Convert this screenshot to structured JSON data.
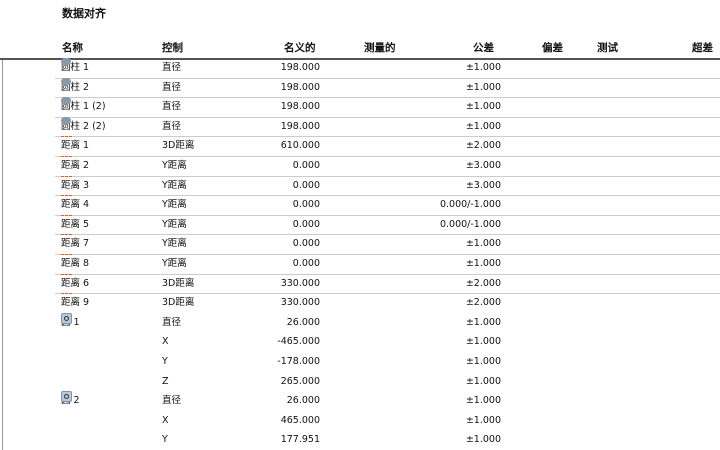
{
  "title": "数据对齐",
  "headers": [
    "名称",
    "控制",
    "名义的",
    "测量的",
    "公差",
    "偏差",
    "测试",
    "超差"
  ],
  "rows": [
    {
      "icon": "cylinder",
      "name": "圆柱 1",
      "control": "直径",
      "nominal": "198.000",
      "tol": "±1.000",
      "div": true
    },
    {
      "icon": "cylinder",
      "name": "圆柱 2",
      "control": "直径",
      "nominal": "198.000",
      "tol": "±1.000",
      "div": true
    },
    {
      "icon": "cylinder",
      "name": "圆柱 1 (2)",
      "control": "直径",
      "nominal": "198.000",
      "tol": "±1.000",
      "div": true
    },
    {
      "icon": "cylinder",
      "name": "圆柱 2 (2)",
      "control": "直径",
      "nominal": "198.000",
      "tol": "±1.000",
      "div": true
    },
    {
      "icon": "distance",
      "name": "距离 1",
      "control": "3D距离",
      "nominal": "610.000",
      "tol": "±2.000",
      "div": true
    },
    {
      "icon": "distance",
      "name": "距离 2",
      "control": "Y距离",
      "nominal": "0.000",
      "tol": "±3.000",
      "div": true
    },
    {
      "icon": "distance",
      "name": "距离 3",
      "control": "Y距离",
      "nominal": "0.000",
      "tol": "±3.000",
      "div": true
    },
    {
      "icon": "distance",
      "name": "距离 4",
      "control": "Y距离",
      "nominal": "0.000",
      "tol": "0.000/-1.000",
      "div": true
    },
    {
      "icon": "distance",
      "name": "距离 5",
      "control": "Y距离",
      "nominal": "0.000",
      "tol": "0.000/-1.000",
      "div": true
    },
    {
      "icon": "distance",
      "name": "距离 7",
      "control": "Y距离",
      "nominal": "0.000",
      "tol": "±1.000",
      "div": true
    },
    {
      "icon": "distance",
      "name": "距离 8",
      "control": "Y距离",
      "nominal": "0.000",
      "tol": "±1.000",
      "div": true
    },
    {
      "icon": "distance",
      "name": "距离 6",
      "control": "3D距离",
      "nominal": "330.000",
      "tol": "±2.000",
      "div": true
    },
    {
      "icon": "distance",
      "name": "距离 9",
      "control": "3D距离",
      "nominal": "330.000",
      "tol": "±2.000",
      "div": false
    },
    {
      "icon": "circle",
      "name": "圆 1",
      "control": "直径",
      "nominal": "26.000",
      "tol": "±1.000",
      "div": false
    },
    {
      "icon": "",
      "name": "",
      "control": "X",
      "nominal": "-465.000",
      "tol": "±1.000",
      "div": false
    },
    {
      "icon": "",
      "name": "",
      "control": "Y",
      "nominal": "-178.000",
      "tol": "±1.000",
      "div": false
    },
    {
      "icon": "",
      "name": "",
      "control": "Z",
      "nominal": "265.000",
      "tol": "±1.000",
      "div": false
    },
    {
      "icon": "circle",
      "name": "圆 2",
      "control": "直径",
      "nominal": "26.000",
      "tol": "±1.000",
      "div": false
    },
    {
      "icon": "",
      "name": "",
      "control": "X",
      "nominal": "465.000",
      "tol": "±1.000",
      "div": false
    },
    {
      "icon": "",
      "name": "",
      "control": "Y",
      "nominal": "177.951",
      "tol": "±1.000",
      "div": false
    }
  ]
}
